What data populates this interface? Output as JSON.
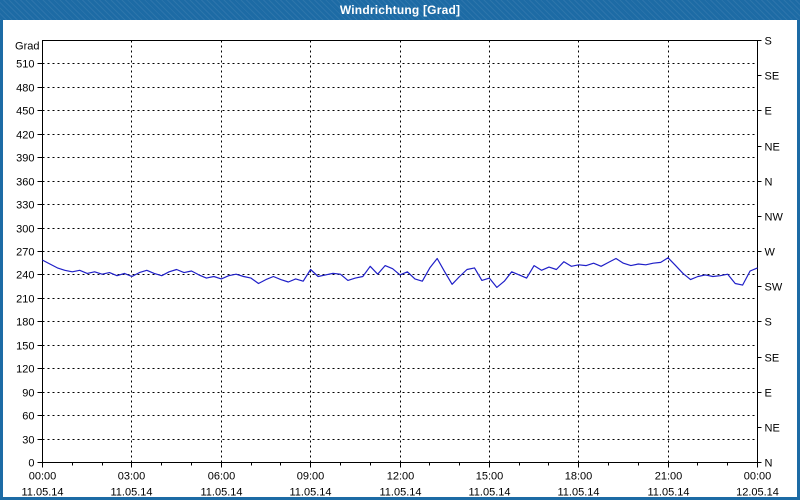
{
  "window": {
    "title": "Windrichtung [Grad]"
  },
  "colors": {
    "frame": "#1d6ba5",
    "title_text": "#ffffff",
    "plot_bg": "#ffffff",
    "grid": "#000000",
    "axis_text": "#000000",
    "line": "#1f1fc8"
  },
  "chart_data": {
    "type": "line",
    "title": "Windrichtung [Grad]",
    "ylabel": "Grad",
    "xlabel": "",
    "ylim": [
      0,
      540
    ],
    "grid": true,
    "legend": "none",
    "y_axis_left": {
      "min": 0,
      "max": 540,
      "tick_step": 30,
      "labeled_max": 510,
      "unit_label": "Grad"
    },
    "y_axis_right": [
      {
        "deg": 540,
        "label": "S"
      },
      {
        "deg": 495,
        "label": "SE"
      },
      {
        "deg": 450,
        "label": "E"
      },
      {
        "deg": 405,
        "label": "NE"
      },
      {
        "deg": 360,
        "label": "N"
      },
      {
        "deg": 315,
        "label": "NW"
      },
      {
        "deg": 270,
        "label": "W"
      },
      {
        "deg": 225,
        "label": "SW"
      },
      {
        "deg": 180,
        "label": "S"
      },
      {
        "deg": 135,
        "label": "SE"
      },
      {
        "deg": 90,
        "label": "E"
      },
      {
        "deg": 45,
        "label": "NE"
      },
      {
        "deg": 0,
        "label": "N"
      }
    ],
    "x_axis": {
      "range_hours": [
        0,
        24
      ],
      "major_tick_hours": 3,
      "minor_tick_hours": 1,
      "ticks": [
        {
          "time": "00:00",
          "date": "11.05.14"
        },
        {
          "time": "03:00",
          "date": "11.05.14"
        },
        {
          "time": "06:00",
          "date": "11.05.14"
        },
        {
          "time": "09:00",
          "date": "11.05.14"
        },
        {
          "time": "12:00",
          "date": "11.05.14"
        },
        {
          "time": "15:00",
          "date": "11.05.14"
        },
        {
          "time": "18:00",
          "date": "11.05.14"
        },
        {
          "time": "21:00",
          "date": "11.05.14"
        },
        {
          "time": "00:00",
          "date": "12.05.14"
        }
      ]
    },
    "series": [
      {
        "name": "Windrichtung",
        "color": "#1f1fc8",
        "start_time": "00:00",
        "interval_minutes": 15,
        "values": [
          259,
          254,
          249,
          246,
          244,
          246,
          242,
          244,
          241,
          243,
          239,
          242,
          238,
          243,
          246,
          242,
          239,
          244,
          247,
          243,
          245,
          240,
          236,
          238,
          235,
          239,
          241,
          238,
          236,
          229,
          234,
          238,
          234,
          231,
          235,
          232,
          247,
          238,
          240,
          242,
          241,
          233,
          236,
          238,
          251,
          241,
          252,
          248,
          240,
          244,
          235,
          232,
          249,
          261,
          244,
          228,
          238,
          247,
          249,
          233,
          236,
          224,
          232,
          244,
          240,
          236,
          252,
          246,
          250,
          247,
          257,
          251,
          253,
          252,
          255,
          251,
          256,
          261,
          255,
          252,
          254,
          253,
          255,
          256,
          262,
          252,
          242,
          234,
          238,
          240,
          238,
          239,
          241,
          229,
          227,
          245,
          249
        ]
      }
    ]
  }
}
